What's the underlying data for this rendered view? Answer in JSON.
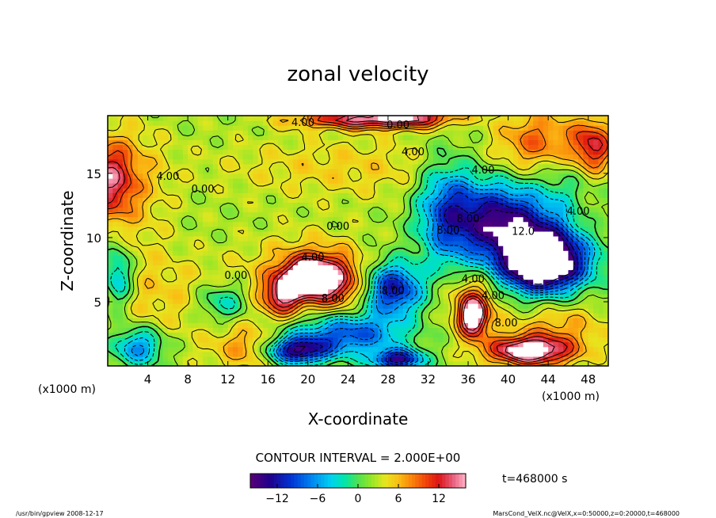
{
  "chart_data": {
    "type": "heatmap",
    "title": "zonal velocity",
    "xlabel": "X-coordinate",
    "ylabel": "Z-coordinate",
    "x_unit_label": "(x1000 m)",
    "y_unit_label": "(x1000 m)",
    "xlim": [
      0,
      50
    ],
    "ylim": [
      0,
      19.5
    ],
    "xticks": [
      4,
      8,
      12,
      16,
      20,
      24,
      28,
      32,
      36,
      40,
      44,
      48
    ],
    "yticks": [
      5,
      10,
      15
    ],
    "contour_interval_text": "CONTOUR INTERVAL = 2.000E+00",
    "time_text": "t=468000 s",
    "colorbar": {
      "min": -16,
      "max": 16,
      "ticks": [
        -12,
        -6,
        0,
        6,
        12
      ]
    },
    "contour_labels": [
      {
        "text": "4.00",
        "x": 19.5,
        "y": 18.7
      },
      {
        "text": "0.00",
        "x": 29,
        "y": 18.5
      },
      {
        "text": "4.00",
        "x": 30.5,
        "y": 16.4
      },
      {
        "text": "4.00",
        "x": 6,
        "y": 14.5
      },
      {
        "text": "0.00",
        "x": 9.5,
        "y": 13.5
      },
      {
        "text": "0.00",
        "x": 23,
        "y": 10.6
      },
      {
        "text": "4.00",
        "x": 20.5,
        "y": 8.2
      },
      {
        "text": "0.00",
        "x": 12.8,
        "y": 6.8
      },
      {
        "text": "8.00",
        "x": 22.5,
        "y": 5.0
      },
      {
        "text": "8.00",
        "x": 28.5,
        "y": 5.6
      },
      {
        "text": "4.00",
        "x": 36.5,
        "y": 6.5
      },
      {
        "text": "4.00",
        "x": 38.5,
        "y": 5.2
      },
      {
        "text": "8.00",
        "x": 39.8,
        "y": 3.1
      },
      {
        "text": "12.0",
        "x": 41.5,
        "y": 10.2
      },
      {
        "text": "4.00",
        "x": 47,
        "y": 11.8
      },
      {
        "text": "8.00",
        "x": 34,
        "y": 10.3
      },
      {
        "text": "8.00",
        "x": 36,
        "y": 11.2
      },
      {
        "text": "4.00",
        "x": 37.5,
        "y": 15.0
      }
    ],
    "features": [
      {
        "x": 5,
        "y": 5.5,
        "value": 4,
        "sx": 9,
        "sy": 3.5
      },
      {
        "x": 24,
        "y": 15.5,
        "value": 4,
        "sx": 14,
        "sy": 2.5
      },
      {
        "x": 0,
        "y": 14.5,
        "value": 12,
        "sx": 2.6,
        "sy": 3.0
      },
      {
        "x": 3,
        "y": 14,
        "value": 4,
        "sx": 3.5,
        "sy": 5.5
      },
      {
        "x": 24,
        "y": 19.2,
        "value": 10,
        "sx": 6,
        "sy": 0.7
      },
      {
        "x": 30,
        "y": 19.4,
        "value": 12,
        "sx": 5,
        "sy": 0.8
      },
      {
        "x": 48.5,
        "y": 17,
        "value": 12,
        "sx": 2.2,
        "sy": 2.2
      },
      {
        "x": 43,
        "y": 17.5,
        "value": 8,
        "sx": 4,
        "sy": 2.5
      },
      {
        "x": 48,
        "y": 12,
        "value": 6,
        "sx": 3,
        "sy": 3
      },
      {
        "x": 20,
        "y": 7,
        "value": 14,
        "sx": 2.4,
        "sy": 1.3
      },
      {
        "x": 17.5,
        "y": 5.5,
        "value": 12,
        "sx": 2.0,
        "sy": 1.5
      },
      {
        "x": 22.5,
        "y": 6.5,
        "value": 10,
        "sx": 3.0,
        "sy": 2.0
      },
      {
        "x": 20,
        "y": 7.5,
        "value": 6,
        "sx": 5.5,
        "sy": 2.8
      },
      {
        "x": 28.5,
        "y": 6,
        "value": -13,
        "sx": 2.8,
        "sy": 2.0
      },
      {
        "x": 24,
        "y": 2.5,
        "value": -10,
        "sx": 5.5,
        "sy": 1.6
      },
      {
        "x": 19,
        "y": 1.2,
        "value": -14,
        "sx": 3,
        "sy": 1.0
      },
      {
        "x": 29,
        "y": 0.5,
        "value": -14,
        "sx": 2.5,
        "sy": 0.8
      },
      {
        "x": 34,
        "y": 12,
        "value": -10,
        "sx": 3,
        "sy": 4
      },
      {
        "x": 39,
        "y": 11.5,
        "value": -12,
        "sx": 4,
        "sy": 3
      },
      {
        "x": 43.5,
        "y": 8,
        "value": -16,
        "sx": 3.5,
        "sy": 2.0
      },
      {
        "x": 43.5,
        "y": 9,
        "value": -12,
        "sx": 5.5,
        "sy": 3.2
      },
      {
        "x": 47,
        "y": 14,
        "value": -4,
        "sx": 4,
        "sy": 3
      },
      {
        "x": 36.5,
        "y": 3.8,
        "value": 14,
        "sx": 1.3,
        "sy": 1.5
      },
      {
        "x": 36.5,
        "y": 5,
        "value": 8,
        "sx": 2.5,
        "sy": 2.5
      },
      {
        "x": 42,
        "y": 1.2,
        "value": 16,
        "sx": 4,
        "sy": 1.1
      },
      {
        "x": 45,
        "y": 3,
        "value": 6,
        "sx": 5,
        "sy": 2.5
      },
      {
        "x": 1,
        "y": 7,
        "value": -7,
        "sx": 1.5,
        "sy": 2.5
      },
      {
        "x": 3,
        "y": 1.5,
        "value": -8,
        "sx": 2.5,
        "sy": 1.5
      },
      {
        "x": 11.5,
        "y": 5,
        "value": -5,
        "sx": 2.5,
        "sy": 1.5
      },
      {
        "x": 14,
        "y": 1.5,
        "value": 6,
        "sx": 3,
        "sy": 1.8
      },
      {
        "x": 10,
        "y": 1,
        "value": 2,
        "sx": 3,
        "sy": 1.5
      }
    ]
  },
  "footer": {
    "left": "/usr/bin/gpview   2008-12-17",
    "right": "MarsCond_VelX.nc@VelX,x=0:50000,z=0:20000,t=468000"
  }
}
